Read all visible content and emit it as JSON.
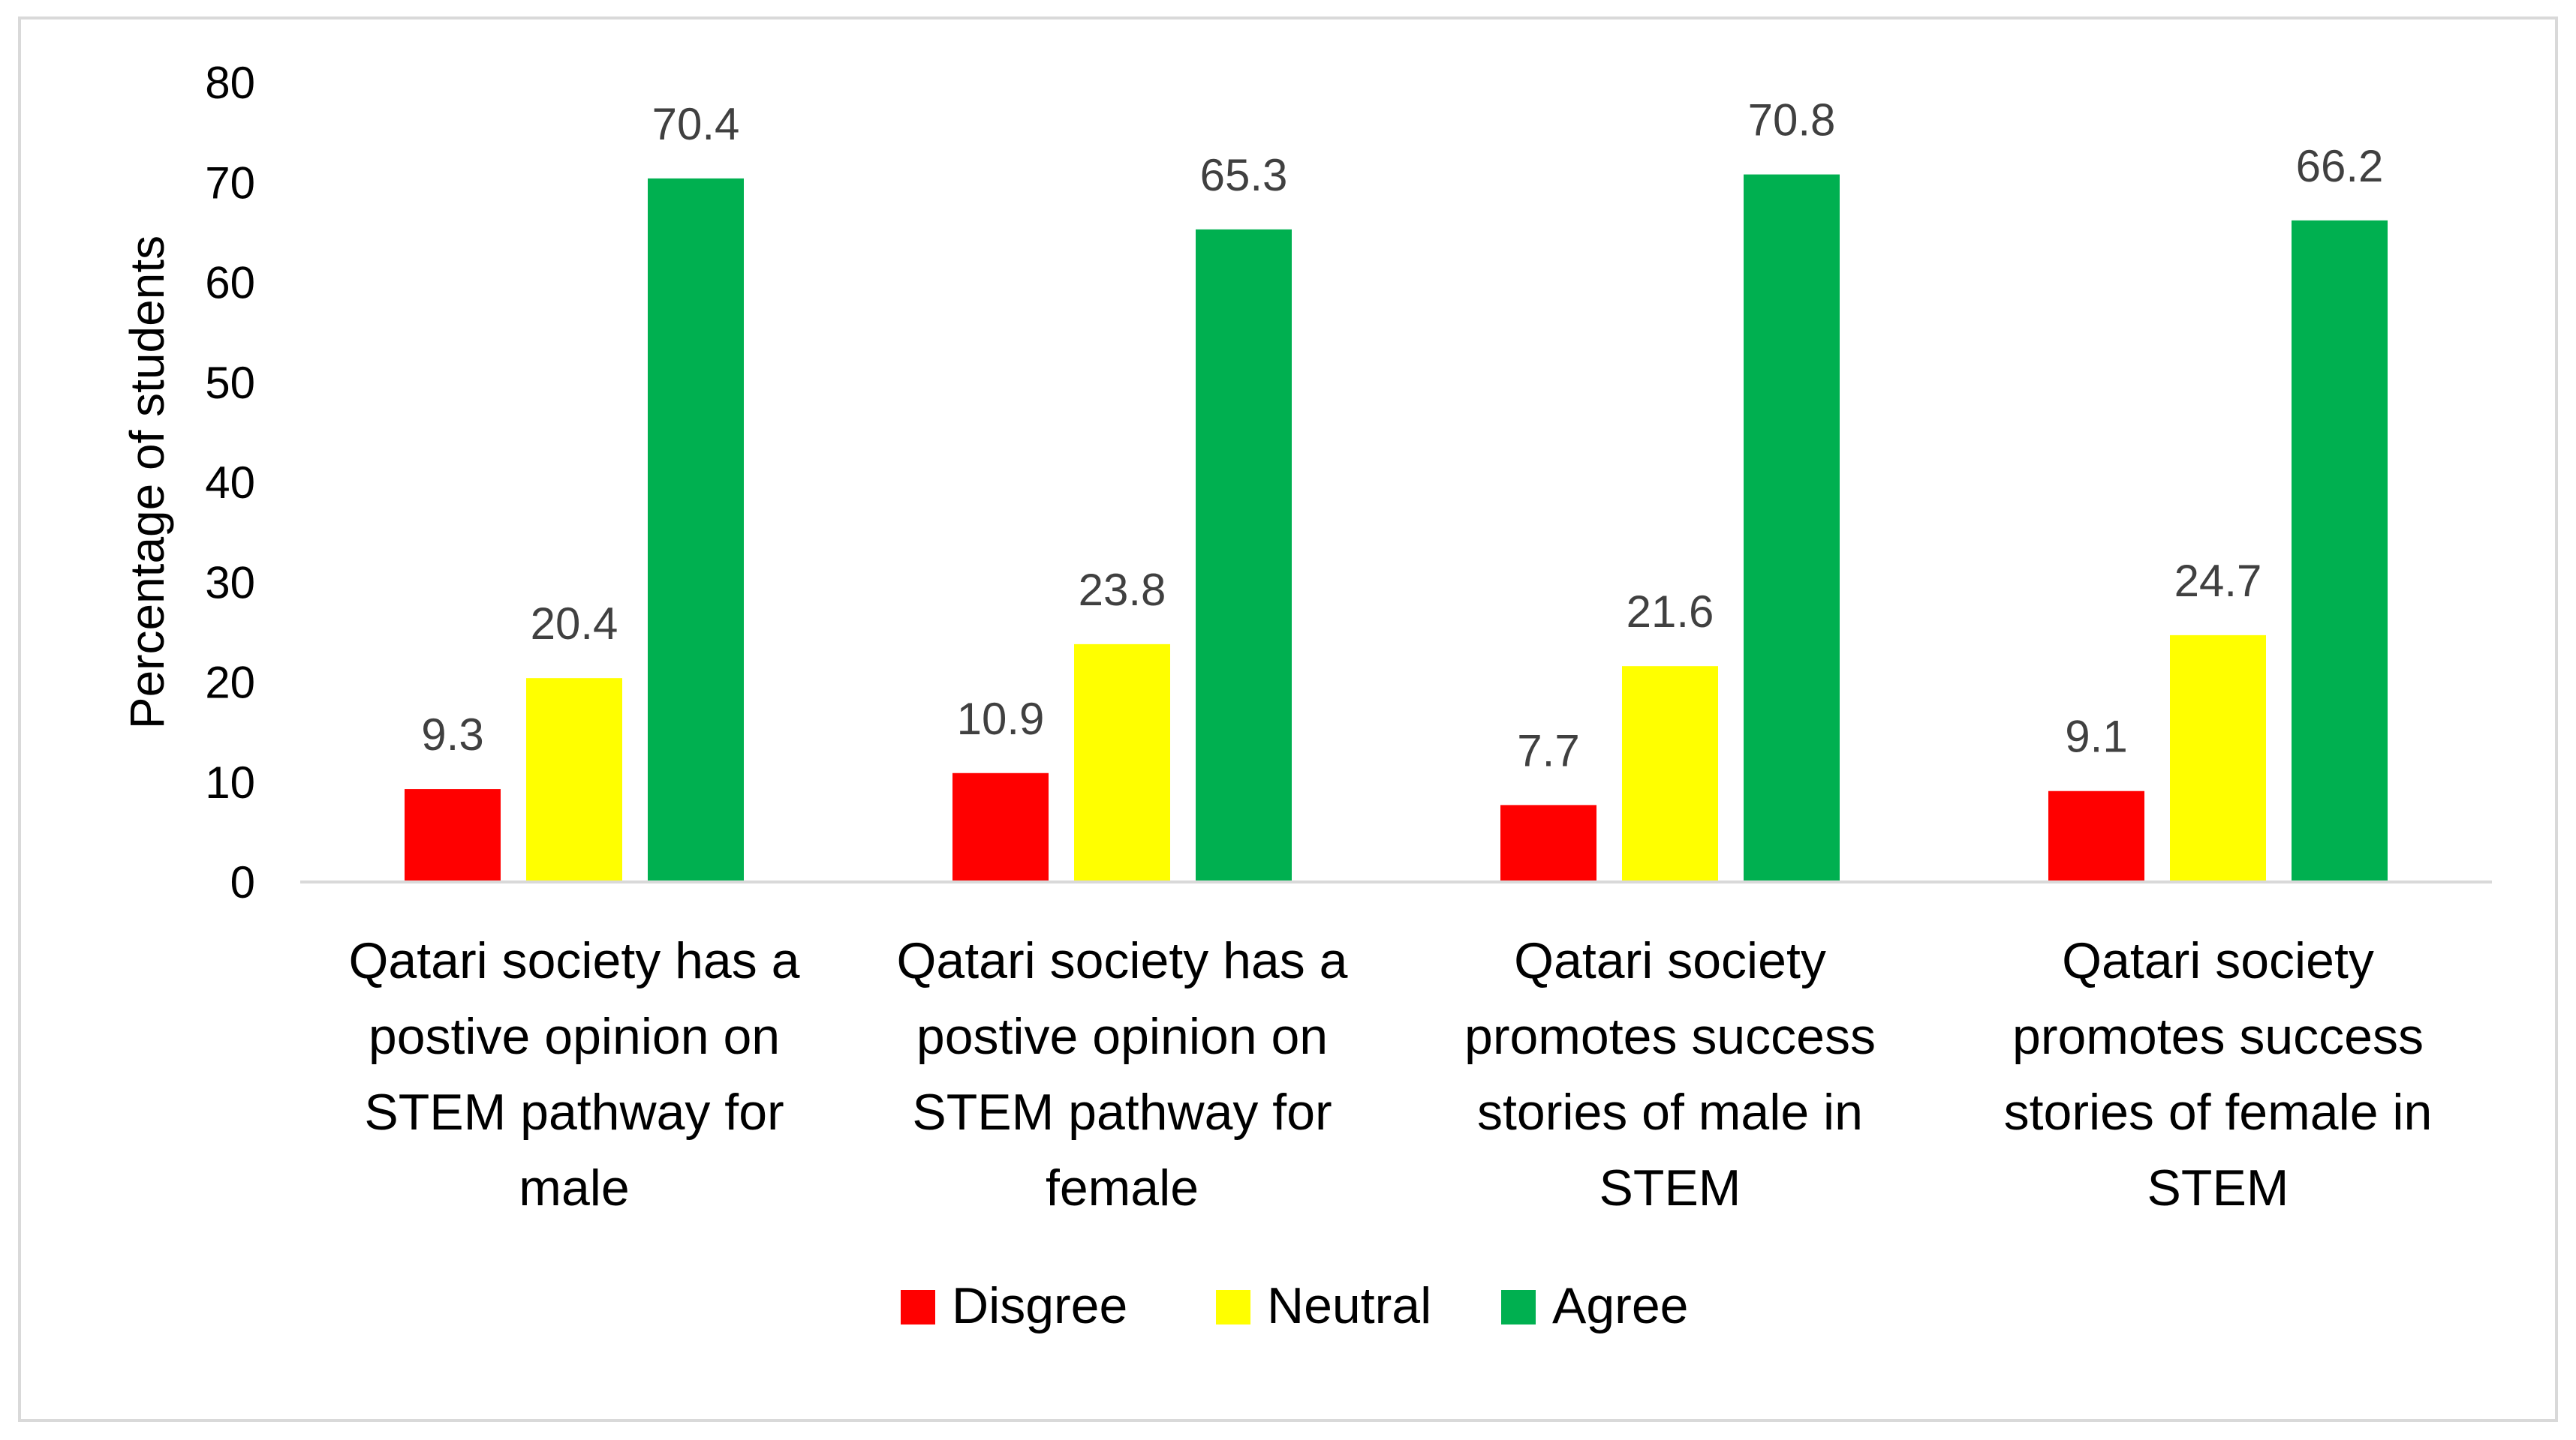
{
  "chart_data": {
    "type": "bar",
    "title": "",
    "xlabel": "",
    "ylabel": "Percentage of students",
    "ylim": [
      0,
      80
    ],
    "yticks": [
      0,
      10,
      20,
      30,
      40,
      50,
      60,
      70,
      80
    ],
    "grid": false,
    "legend_position": "bottom",
    "categories": [
      [
        "Qatari society has a",
        "postive opinion on",
        "STEM pathway for",
        "male"
      ],
      [
        "Qatari society has a",
        "postive opinion on",
        "STEM pathway for",
        "female"
      ],
      [
        "Qatari society",
        "promotes success",
        "stories of male in",
        "STEM"
      ],
      [
        "Qatari society",
        "promotes success",
        "stories of female in",
        "STEM"
      ]
    ],
    "series": [
      {
        "name": "Disgree",
        "color": "#ff0000",
        "values": [
          9.3,
          10.9,
          7.7,
          9.1
        ]
      },
      {
        "name": "Neutral",
        "color": "#ffff00",
        "values": [
          20.4,
          23.8,
          21.6,
          24.7
        ]
      },
      {
        "name": "Agree",
        "color": "#00b050",
        "values": [
          70.4,
          65.3,
          70.8,
          66.2
        ]
      }
    ]
  }
}
